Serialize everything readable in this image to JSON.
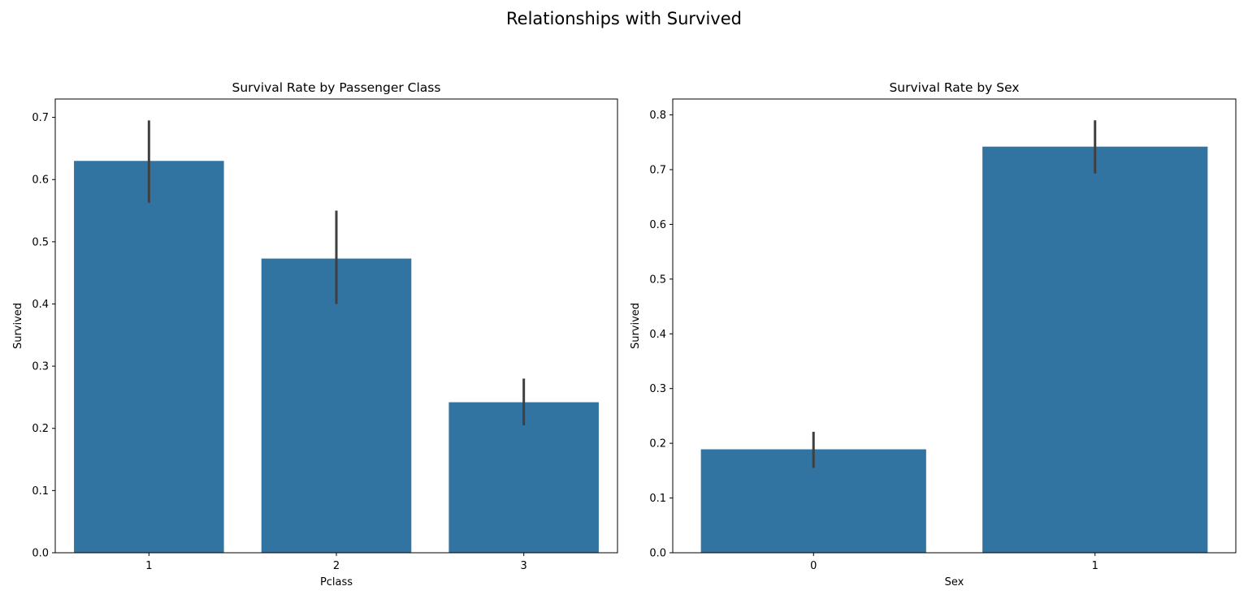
{
  "figure": {
    "suptitle": "Relationships with Survived"
  },
  "colors": {
    "bar": "#3274a1",
    "errorbar": "#3f3f3f",
    "axes": "#000000",
    "background": "#ffffff"
  },
  "chart_data": [
    {
      "type": "bar",
      "title": "Survival Rate by Passenger Class",
      "xlabel": "Pclass",
      "ylabel": "Survived",
      "categories": [
        "1",
        "2",
        "3"
      ],
      "values": [
        0.63,
        0.473,
        0.242
      ],
      "error_low": [
        0.563,
        0.4,
        0.205
      ],
      "error_high": [
        0.695,
        0.55,
        0.28
      ],
      "ylim": [
        0,
        0.7295
      ],
      "yticks": [
        0.0,
        0.1,
        0.2,
        0.3,
        0.4,
        0.5,
        0.6,
        0.7
      ],
      "ytick_labels": [
        "0.0",
        "0.1",
        "0.2",
        "0.3",
        "0.4",
        "0.5",
        "0.6",
        "0.7"
      ],
      "grid": false,
      "legend": "none"
    },
    {
      "type": "bar",
      "title": "Survival Rate by Sex",
      "xlabel": "Sex",
      "ylabel": "Survived",
      "categories": [
        "0",
        "1"
      ],
      "values": [
        0.189,
        0.742
      ],
      "error_low": [
        0.155,
        0.693
      ],
      "error_high": [
        0.221,
        0.79
      ],
      "ylim": [
        0,
        0.829
      ],
      "yticks": [
        0.0,
        0.1,
        0.2,
        0.3,
        0.4,
        0.5,
        0.6,
        0.7,
        0.8
      ],
      "ytick_labels": [
        "0.0",
        "0.1",
        "0.2",
        "0.3",
        "0.4",
        "0.5",
        "0.6",
        "0.7",
        "0.8"
      ],
      "grid": false,
      "legend": "none"
    }
  ]
}
